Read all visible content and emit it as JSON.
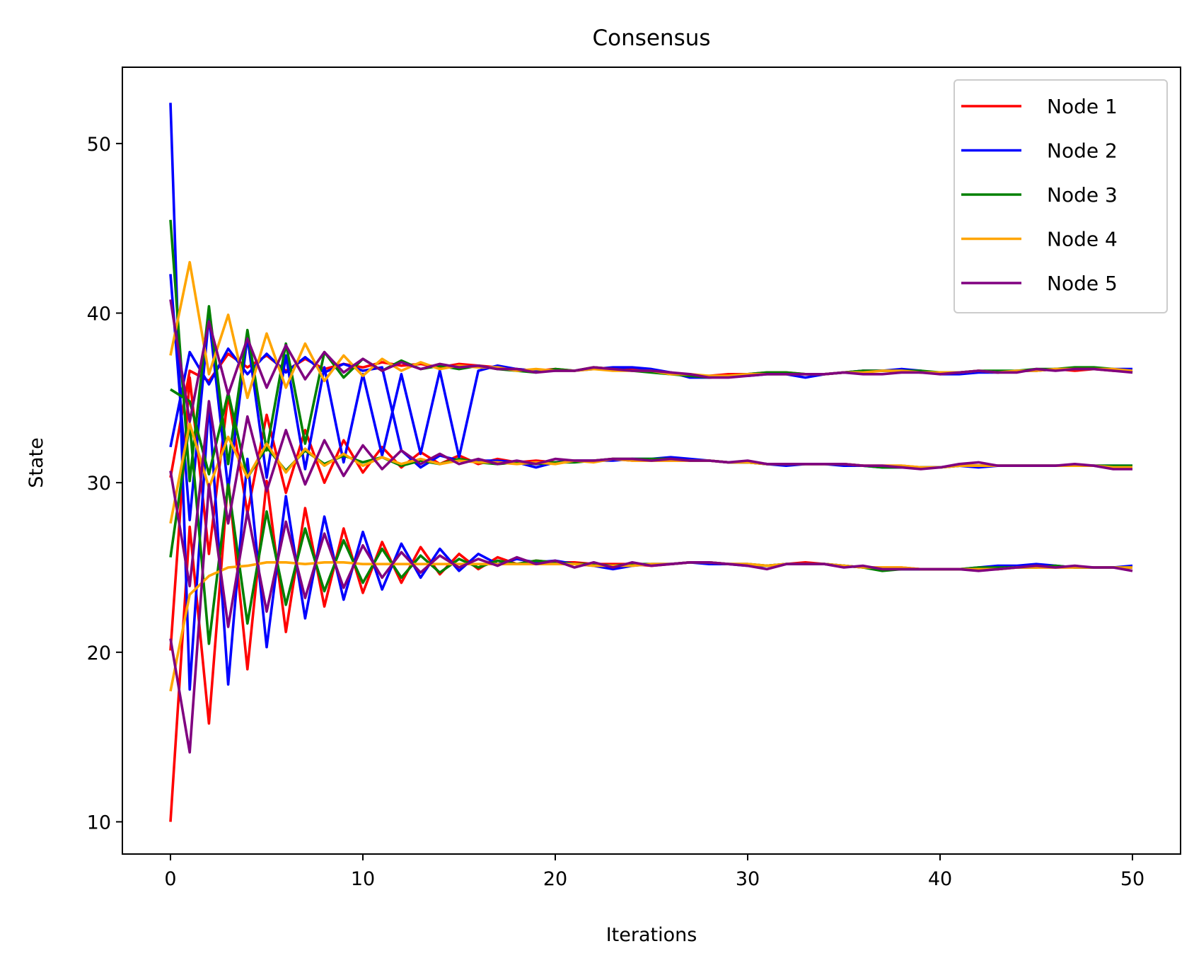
{
  "chart_data": {
    "type": "line",
    "title": "Consensus",
    "xlabel": "Iterations",
    "ylabel": "State",
    "xlim": [
      -2.5,
      52.5
    ],
    "ylim": [
      8.1,
      54.5
    ],
    "xticks": [
      0,
      10,
      20,
      30,
      40,
      50
    ],
    "yticks": [
      10,
      20,
      30,
      40,
      50
    ],
    "grid": false,
    "legend_position": "top-right",
    "x": [
      0,
      1,
      2,
      3,
      4,
      5,
      6,
      7,
      8,
      9,
      10,
      11,
      12,
      13,
      14,
      15,
      16,
      17,
      18,
      19,
      20,
      21,
      22,
      23,
      24,
      25,
      26,
      27,
      28,
      29,
      30,
      31,
      32,
      33,
      34,
      35,
      36,
      37,
      38,
      39,
      40,
      41,
      42,
      43,
      44,
      45,
      46,
      47,
      48,
      49,
      50
    ],
    "series": [
      {
        "name": "Node 1",
        "color": "#ff0000",
        "groups": [
          [
            30.3,
            36.6,
            36,
            37.6,
            36.8,
            37.5,
            36.6,
            37.3,
            36.7,
            37,
            36.8,
            37.1,
            36.9,
            37,
            36.8,
            37,
            36.9,
            36.8,
            36.7,
            36.6,
            36.7,
            36.6,
            36.8,
            36.7,
            36.7,
            36.6,
            36.5,
            36.3,
            36.3,
            36.4,
            36.4,
            36.5,
            36.5,
            36.4,
            36.4,
            36.5,
            36.6,
            36.6,
            36.6,
            36.5,
            36.5,
            36.5,
            36.6,
            36.5,
            36.6,
            36.6,
            36.7,
            36.6,
            36.7,
            36.6,
            36.6
          ],
          [
            20.1,
            36.2,
            25.8,
            35.2,
            28.2,
            34,
            29.4,
            33.1,
            30,
            32.5,
            30.6,
            32.1,
            30.9,
            31.8,
            31.1,
            31.6,
            31.1,
            31.4,
            31.2,
            31.3,
            31.2,
            31.3,
            31.3,
            31.4,
            31.3,
            31.3,
            31.3,
            31.3,
            31.3,
            31.2,
            31.2,
            31.1,
            31.1,
            31.1,
            31.1,
            31.1,
            31,
            31,
            31,
            30.9,
            30.9,
            31,
            31,
            31,
            31,
            31,
            31,
            31,
            31,
            30.9,
            30.9
          ],
          [
            10,
            27.4,
            15.8,
            30.2,
            19,
            30.1,
            21.2,
            28.5,
            22.7,
            27.3,
            23.5,
            26.5,
            24.1,
            26.2,
            24.6,
            25.8,
            24.9,
            25.6,
            25.2,
            25.4,
            25.3,
            25.3,
            25.2,
            25.2,
            25.2,
            25.1,
            25.2,
            25.3,
            25.3,
            25.2,
            25.2,
            25.1,
            25.2,
            25.3,
            25.2,
            25.1,
            25,
            25,
            25,
            24.9,
            24.9,
            24.9,
            24.9,
            24.9,
            25,
            25,
            25,
            25,
            25,
            25,
            25
          ]
        ]
      },
      {
        "name": "Node 2",
        "color": "#0000ff",
        "groups": [
          [
            42.3,
            27.8,
            39.8,
            29.6,
            38.6,
            30.3,
            37.5,
            30.8,
            36.8,
            31.2,
            36.4,
            31.6,
            36.4,
            31.7,
            36.6,
            31.5,
            36.6,
            36.9,
            36.7,
            36.6,
            36.6,
            36.6,
            36.7,
            36.8,
            36.8,
            36.7,
            36.5,
            36.2,
            36.2,
            36.3,
            36.3,
            36.4,
            36.4,
            36.2,
            36.4,
            36.5,
            36.6,
            36.6,
            36.7,
            36.6,
            36.4,
            36.4,
            36.5,
            36.5,
            36.6,
            36.6,
            36.7,
            36.7,
            36.7,
            36.7,
            36.7
          ],
          [
            32.1,
            37.7,
            35.8,
            37.9,
            36.4,
            37.6,
            36.5,
            37.4,
            36.5,
            37,
            36.6,
            36.8,
            31.9,
            30.9,
            31.6,
            31.3,
            31.3,
            31.3,
            31.2,
            30.9,
            31.2,
            31.3,
            31.3,
            31.3,
            31.4,
            31.4,
            31.5,
            31.4,
            31.3,
            31.2,
            31.2,
            31.1,
            31,
            31.1,
            31.1,
            31,
            31,
            30.9,
            30.9,
            30.9,
            30.9,
            31,
            30.9,
            31,
            31,
            31,
            31,
            31,
            31,
            31,
            31
          ],
          [
            52.4,
            17.8,
            34.7,
            18.1,
            31.4,
            20.3,
            29.2,
            22,
            28,
            23.1,
            27.1,
            23.7,
            26.4,
            24.4,
            26.1,
            24.8,
            25.8,
            25.2,
            25.5,
            25.3,
            25.4,
            25.2,
            25.1,
            24.9,
            25.1,
            25.2,
            25.2,
            25.3,
            25.2,
            25.2,
            25.1,
            25.1,
            25.2,
            25.2,
            25.2,
            25.1,
            25,
            24.9,
            24.9,
            24.9,
            24.9,
            24.9,
            25,
            25.1,
            25.1,
            25.2,
            25.1,
            25,
            25,
            25,
            25.1
          ]
        ]
      },
      {
        "name": "Node 3",
        "color": "#008000",
        "groups": [
          [
            45.5,
            30.1,
            40.4,
            31.1,
            39,
            31.9,
            38.2,
            32.3,
            37.7,
            36.2,
            37.3,
            36.6,
            37.2,
            36.7,
            36.9,
            36.7,
            36.9,
            36.7,
            36.6,
            36.5,
            36.7,
            36.6,
            36.8,
            36.7,
            36.6,
            36.5,
            36.4,
            36.3,
            36.2,
            36.3,
            36.4,
            36.5,
            36.5,
            36.4,
            36.4,
            36.5,
            36.6,
            36.6,
            36.6,
            36.6,
            36.5,
            36.5,
            36.6,
            36.6,
            36.6,
            36.7,
            36.7,
            36.8,
            36.8,
            36.7,
            36.5
          ],
          [
            35.5,
            34.8,
            30.5,
            35.3,
            30.3,
            32.1,
            30.7,
            31.9,
            31.1,
            31.6,
            31.2,
            31.5,
            31,
            31.3,
            31.1,
            31.4,
            31.2,
            31.1,
            31.2,
            31.1,
            31.2,
            31.2,
            31.3,
            31.4,
            31.4,
            31.4,
            31.4,
            31.3,
            31.3,
            31.2,
            31.2,
            31.1,
            31.1,
            31.1,
            31.1,
            31.1,
            31,
            30.9,
            30.9,
            30.9,
            30.9,
            31,
            31,
            31,
            31,
            31,
            31,
            31,
            31,
            31,
            31
          ],
          [
            25.6,
            33.5,
            20.5,
            29.9,
            21.7,
            28.3,
            22.8,
            27.3,
            23.6,
            26.6,
            24.1,
            26.1,
            24.4,
            25.7,
            24.7,
            25.5,
            25,
            25.4,
            25.2,
            25.4,
            25.3,
            25.2,
            25.2,
            25.1,
            25.2,
            25.2,
            25.2,
            25.3,
            25.3,
            25.2,
            25.2,
            25.1,
            25.2,
            25.2,
            25.2,
            25.1,
            25,
            24.8,
            24.9,
            24.9,
            24.9,
            24.9,
            25,
            25,
            25,
            25,
            25.1,
            25,
            25,
            25,
            25
          ]
        ]
      },
      {
        "name": "Node 4",
        "color": "#ffa500",
        "groups": [
          [
            37.5,
            43,
            36.4,
            39.9,
            35,
            38.8,
            35.6,
            38.2,
            36,
            37.5,
            36.3,
            37.3,
            36.6,
            37.1,
            36.7,
            36.9,
            36.8,
            36.8,
            36.6,
            36.7,
            36.6,
            36.6,
            36.7,
            36.6,
            36.6,
            36.6,
            36.4,
            36.4,
            36.3,
            36.3,
            36.4,
            36.4,
            36.4,
            36.4,
            36.4,
            36.5,
            36.5,
            36.6,
            36.6,
            36.5,
            36.5,
            36.5,
            36.6,
            36.5,
            36.6,
            36.6,
            36.7,
            36.7,
            36.7,
            36.7,
            36.6
          ],
          [
            27.6,
            33.5,
            29.7,
            32.7,
            30.3,
            32.3,
            30.6,
            32,
            31,
            31.7,
            31,
            31.5,
            31.1,
            31.4,
            31.1,
            31.3,
            31.2,
            31.2,
            31.1,
            31.2,
            31.1,
            31.3,
            31.2,
            31.4,
            31.3,
            31.3,
            31.3,
            31.3,
            31.3,
            31.2,
            31.2,
            31.1,
            31.1,
            31.1,
            31.1,
            31.1,
            31,
            31,
            31,
            30.9,
            30.9,
            31,
            31,
            31,
            31,
            31,
            31,
            31,
            31,
            30.9,
            30.9
          ],
          [
            17.7,
            23.4,
            24.5,
            25,
            25.1,
            25.3,
            25.3,
            25.2,
            25.3,
            25.3,
            25.2,
            25.2,
            25.2,
            25.2,
            25.2,
            25.2,
            25.2,
            25.2,
            25.2,
            25.2,
            25.2,
            25.2,
            25.1,
            25.1,
            25.1,
            25.2,
            25.2,
            25.3,
            25.3,
            25.2,
            25.2,
            25.1,
            25.2,
            25.2,
            25.2,
            25.1,
            25,
            25,
            25,
            24.9,
            24.9,
            24.9,
            24.9,
            24.9,
            25,
            25,
            25,
            25,
            25,
            25,
            25
          ]
        ]
      },
      {
        "name": "Node 5",
        "color": "#800080",
        "groups": [
          [
            40.8,
            33.6,
            39.5,
            35.2,
            38.5,
            35.6,
            38.1,
            36.1,
            37.7,
            36.5,
            37.3,
            36.6,
            37.1,
            36.7,
            37,
            36.8,
            36.9,
            36.7,
            36.7,
            36.5,
            36.6,
            36.6,
            36.8,
            36.7,
            36.6,
            36.6,
            36.5,
            36.4,
            36.2,
            36.2,
            36.3,
            36.4,
            36.4,
            36.4,
            36.4,
            36.5,
            36.4,
            36.4,
            36.5,
            36.5,
            36.4,
            36.5,
            36.6,
            36.5,
            36.5,
            36.7,
            36.6,
            36.7,
            36.7,
            36.6,
            36.5
          ],
          [
            30.7,
            23.9,
            34.8,
            27.6,
            33.9,
            29.5,
            33.1,
            29.9,
            32.5,
            30.4,
            32.2,
            30.8,
            31.9,
            31.1,
            31.7,
            31.1,
            31.4,
            31.1,
            31.3,
            31.1,
            31.4,
            31.3,
            31.3,
            31.4,
            31.4,
            31.3,
            31.4,
            31.3,
            31.3,
            31.2,
            31.3,
            31.1,
            31.1,
            31.1,
            31.1,
            31.1,
            31,
            31,
            30.9,
            30.8,
            30.9,
            31.1,
            31.2,
            31,
            31,
            31,
            31,
            31.1,
            31,
            30.8,
            30.8
          ],
          [
            20.8,
            14.1,
            29.9,
            21.5,
            28.3,
            22.4,
            27.7,
            23.2,
            27,
            23.8,
            26.3,
            24.4,
            25.9,
            24.7,
            25.7,
            25,
            25.5,
            25.1,
            25.6,
            25.2,
            25.4,
            25,
            25.3,
            25,
            25.3,
            25.1,
            25.2,
            25.3,
            25.3,
            25.2,
            25.1,
            24.9,
            25.2,
            25.2,
            25.2,
            25,
            25.1,
            24.9,
            24.9,
            24.9,
            24.9,
            24.9,
            24.8,
            24.9,
            25,
            25.1,
            25,
            25.1,
            25,
            25,
            24.8
          ]
        ]
      }
    ]
  }
}
